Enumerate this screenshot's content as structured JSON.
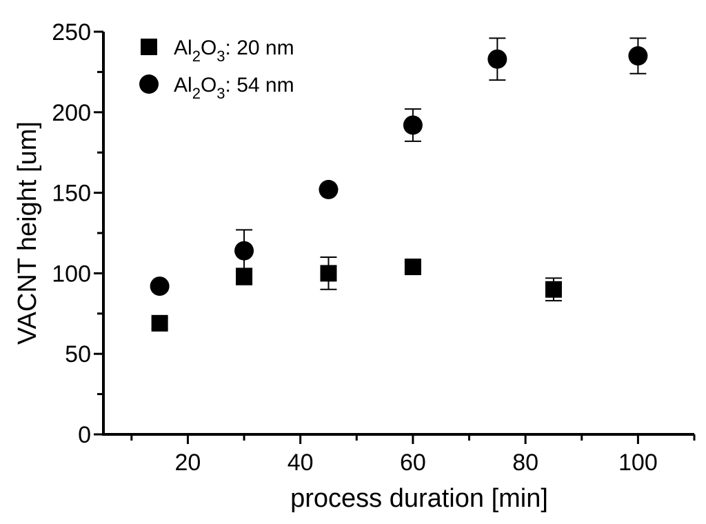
{
  "chart_data": {
    "type": "scatter",
    "title": "",
    "xlabel": "process duration [min]",
    "ylabel": "VACNT height [um]",
    "xlim": [
      5,
      110
    ],
    "ylim": [
      0,
      250
    ],
    "x_ticks": [
      20,
      40,
      60,
      80,
      100
    ],
    "y_ticks": [
      0,
      50,
      100,
      150,
      200,
      250
    ],
    "grid": false,
    "legend_position": "top-left",
    "series": [
      {
        "name": "Al2O3: 20 nm",
        "legend_parts": {
          "main": "Al",
          "sub1": "2",
          "mid": "O",
          "sub2": "3",
          "rest": ": 20 nm"
        },
        "marker": "square",
        "points": [
          {
            "x": 15,
            "y": 69,
            "err": 3
          },
          {
            "x": 30,
            "y": 98,
            "err": 5
          },
          {
            "x": 45,
            "y": 100,
            "err": 10
          },
          {
            "x": 60,
            "y": 104,
            "err": 3
          },
          {
            "x": 85,
            "y": 90,
            "err": 7
          }
        ]
      },
      {
        "name": "Al2O3: 54 nm",
        "legend_parts": {
          "main": "Al",
          "sub1": "2",
          "mid": "O",
          "sub2": "3",
          "rest": ": 54 nm"
        },
        "marker": "circle",
        "points": [
          {
            "x": 15,
            "y": 92,
            "err": 0
          },
          {
            "x": 30,
            "y": 114,
            "err": 13
          },
          {
            "x": 45,
            "y": 152,
            "err": 0
          },
          {
            "x": 60,
            "y": 192,
            "err": 10
          },
          {
            "x": 75,
            "y": 233,
            "err": 13
          },
          {
            "x": 100,
            "y": 235,
            "err": 11
          }
        ]
      }
    ],
    "marker_color": "#000000"
  }
}
